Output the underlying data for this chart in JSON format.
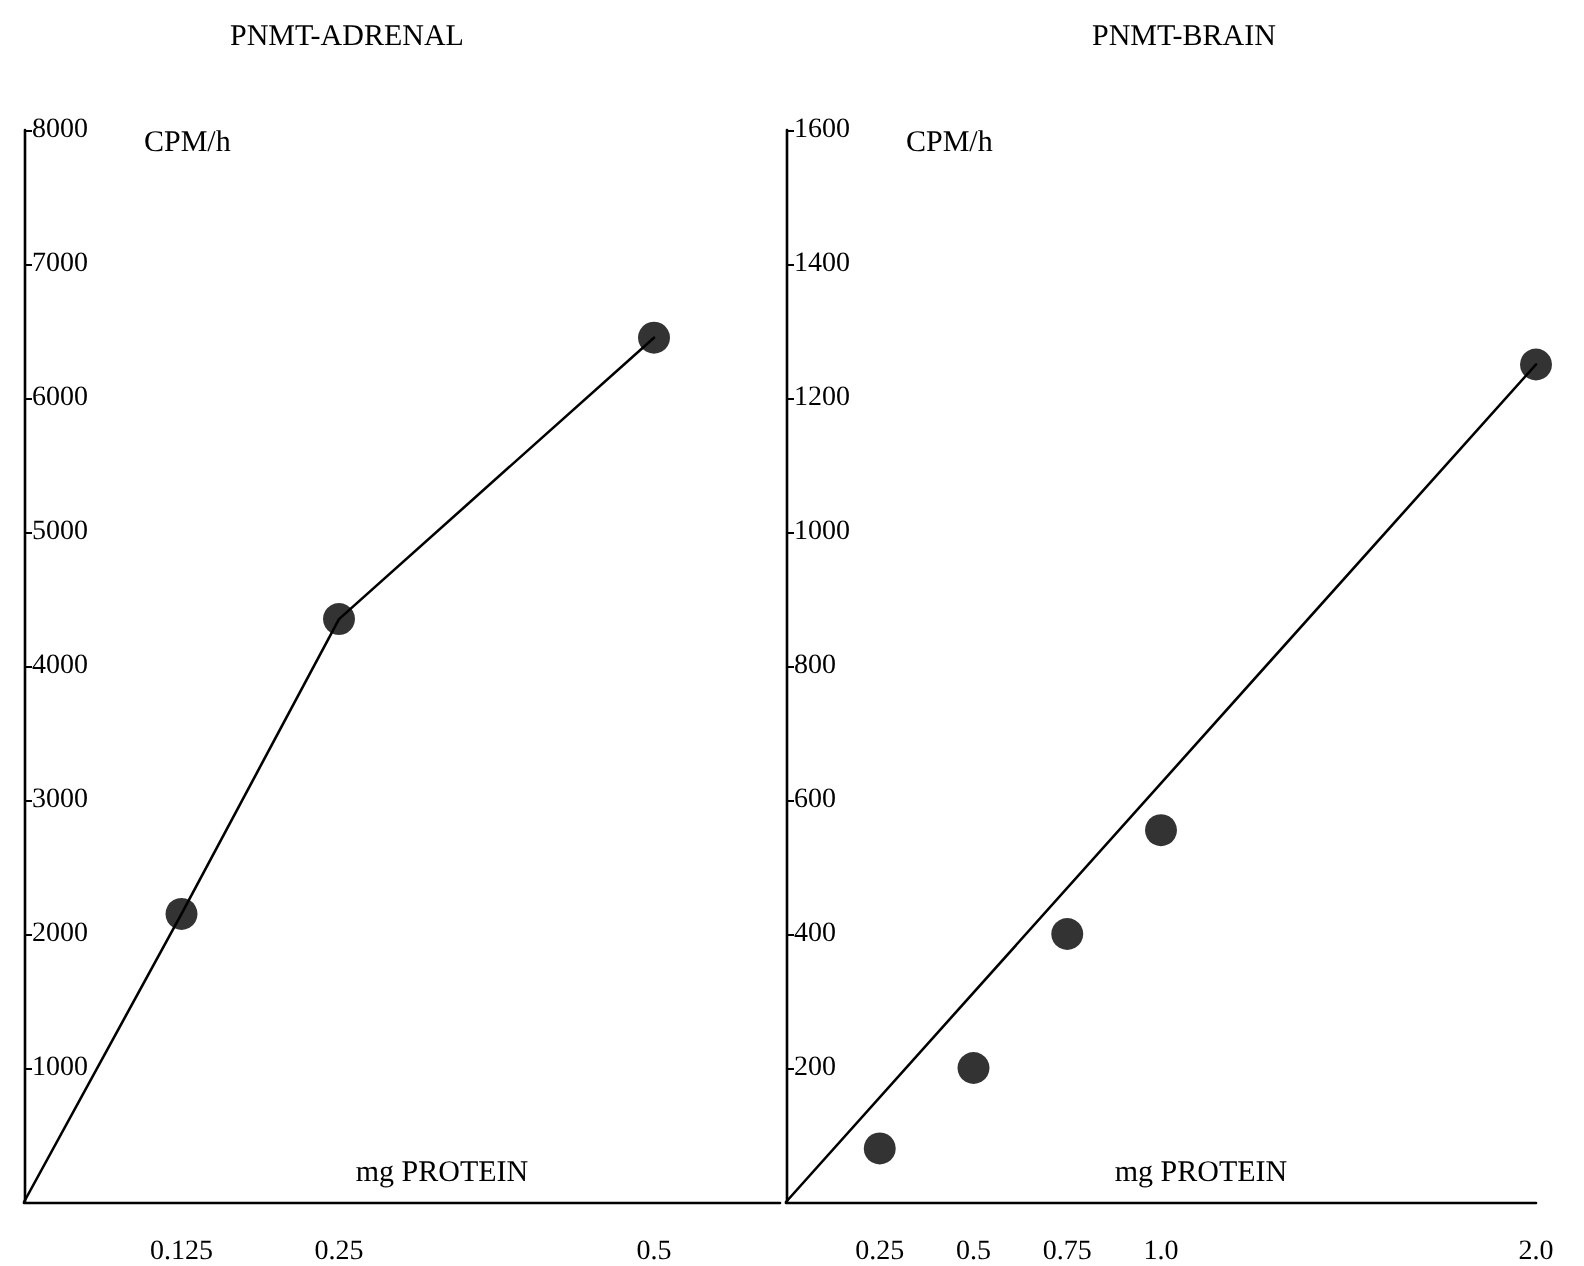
{
  "chart_data": [
    {
      "type": "scatter",
      "title": "PNMT-ADRENAL",
      "xlabel": "mg PROTEIN",
      "ylabel": "CPM/h",
      "xlim": [
        0,
        0.6
      ],
      "xticks": [
        0.125,
        0.25,
        0.5
      ],
      "ylim": [
        0,
        8000
      ],
      "yticks": [
        1000,
        2000,
        3000,
        4000,
        5000,
        6000,
        7000,
        8000
      ],
      "grid": false,
      "marker": "circle",
      "series": [
        {
          "type": "line",
          "marker": "none",
          "line_style": "solid",
          "color": "#000000",
          "x": [
            0,
            0.125,
            0.25,
            0.5
          ],
          "values": [
            0,
            2150,
            4350,
            6450
          ]
        },
        {
          "type": "scatter",
          "color": "#000000",
          "x": [
            0.125,
            0.25,
            0.5
          ],
          "values": [
            2150,
            4350,
            6450
          ]
        }
      ]
    },
    {
      "type": "scatter",
      "title": "PNMT-BRAIN",
      "xlabel": "mg PROTEIN",
      "ylabel": "CPM/h",
      "xlim": [
        0,
        2.0
      ],
      "xticks": [
        0.25,
        0.5,
        0.75,
        {
          "value": 1,
          "label": "1.0"
        },
        {
          "value": 2,
          "label": "2.0"
        }
      ],
      "ylim": [
        0,
        1600
      ],
      "yticks": [
        200,
        400,
        600,
        800,
        1000,
        1200,
        1400,
        1600
      ],
      "grid": false,
      "marker": "circle",
      "series": [
        {
          "type": "line",
          "marker": "none",
          "line_style": "solid",
          "color": "#000000",
          "x": [
            0,
            2.0
          ],
          "values": [
            0,
            1250
          ]
        },
        {
          "type": "scatter",
          "color": "#000000",
          "x": [
            0.25,
            0.5,
            0.75,
            1.0,
            2.0
          ],
          "values": [
            80,
            200,
            400,
            555,
            1250
          ]
        }
      ]
    }
  ]
}
